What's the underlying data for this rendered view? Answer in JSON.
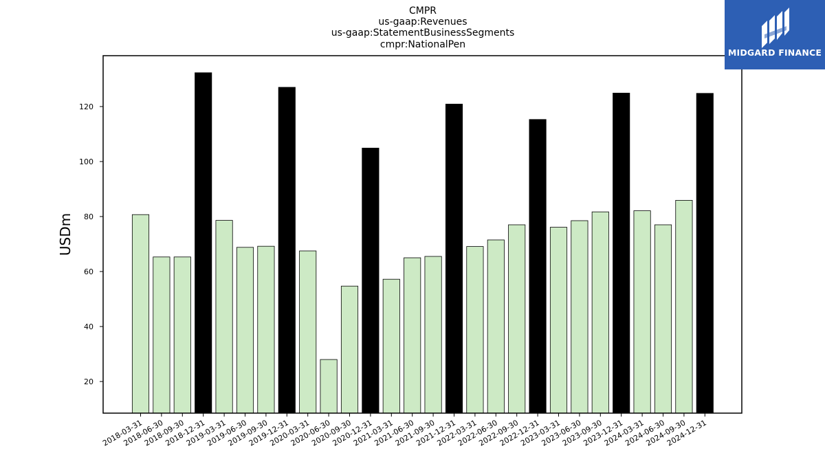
{
  "chart_data": {
    "type": "bar",
    "title_lines": [
      "CMPR",
      "us-gaap:Revenues",
      "us-gaap:StatementBusinessSegments",
      "cmpr:NationalPen"
    ],
    "xlabel": "",
    "ylabel": "USDm",
    "ylim": [
      8.5,
      138.5
    ],
    "yticks": [
      20,
      40,
      60,
      80,
      100,
      120
    ],
    "grid": false,
    "colors": {
      "regular": "#cdeac5",
      "q4": "#000000",
      "edge": "#000000"
    },
    "categories": [
      "2018-03-31",
      "2018-06-30",
      "2018-09-30",
      "2018-12-31",
      "2019-03-31",
      "2019-06-30",
      "2019-09-30",
      "2019-12-31",
      "2020-03-31",
      "2020-06-30",
      "2020-09-30",
      "2020-12-31",
      "2021-03-31",
      "2021-06-30",
      "2021-09-30",
      "2021-12-31",
      "2022-03-31",
      "2022-06-30",
      "2022-09-30",
      "2022-12-31",
      "2023-03-31",
      "2023-06-30",
      "2023-09-30",
      "2023-12-31",
      "2024-03-31",
      "2024-06-30",
      "2024-09-30",
      "2024-12-31"
    ],
    "values": [
      80.7,
      65.3,
      65.3,
      132.3,
      78.6,
      68.8,
      69.2,
      127.0,
      67.5,
      28.0,
      54.7,
      104.9,
      57.2,
      65.0,
      65.5,
      120.9,
      69.1,
      71.5,
      77.0,
      115.3,
      76.1,
      78.5,
      81.7,
      124.9,
      82.1,
      77.0,
      85.9,
      124.8
    ],
    "highlight": [
      false,
      false,
      false,
      true,
      false,
      false,
      false,
      true,
      false,
      false,
      false,
      true,
      false,
      false,
      false,
      true,
      false,
      false,
      false,
      true,
      false,
      false,
      false,
      true,
      false,
      false,
      false,
      true
    ]
  },
  "logo": {
    "text": "MIDGARD FINANCE",
    "background": "#2d5fb4",
    "icon": "midgard-logo-icon"
  }
}
